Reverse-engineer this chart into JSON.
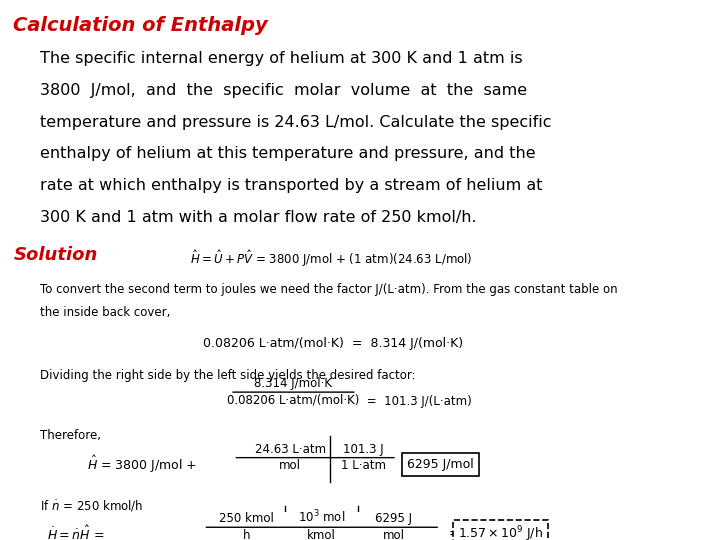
{
  "title": "Calculation of Enthalpy",
  "title_color": "#cc0000",
  "background_color": "#ffffff",
  "body_text_color": "#000000",
  "solution_label": "Solution",
  "solution_color": "#cc0000",
  "para_lines": [
    "The specific internal energy of helium at 300 K and 1 atm is",
    "3800  J/mol,  and  the  specific  molar  volume  at  the  same",
    "temperature and pressure is 24.63 L/mol. Calculate the specific",
    "enthalpy of helium at this temperature and pressure, and the",
    "rate at which enthalpy is transported by a stream of helium at",
    "300 K and 1 atm with a molar flow rate of 250 kmol/h."
  ],
  "fig_width": 7.2,
  "fig_height": 5.4,
  "dpi": 100
}
